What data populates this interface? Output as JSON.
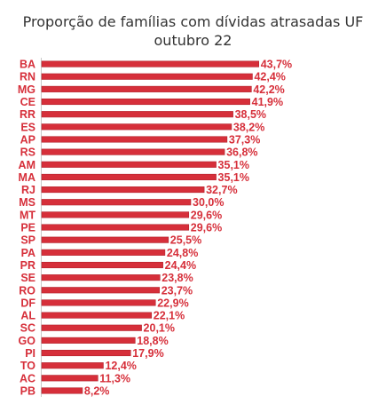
{
  "chart_data": {
    "type": "bar",
    "orientation": "horizontal",
    "title": "Proporção de famílias com dívidas atrasadas UF\noutubro  22",
    "categories": [
      "BA",
      "RN",
      "MG",
      "CE",
      "RR",
      "ES",
      "AP",
      "RS",
      "AM",
      "MA",
      "RJ",
      "MS",
      "MT",
      "PE",
      "SP",
      "PA",
      "PR",
      "SE",
      "RO",
      "DF",
      "AL",
      "SC",
      "GO",
      "PI",
      "TO",
      "AC",
      "PB"
    ],
    "values": [
      43.7,
      42.4,
      42.2,
      41.9,
      38.5,
      38.2,
      37.3,
      36.8,
      35.1,
      35.1,
      32.7,
      30.0,
      29.6,
      29.6,
      25.5,
      24.8,
      24.4,
      23.8,
      23.7,
      22.9,
      22.1,
      20.1,
      18.8,
      17.9,
      12.4,
      11.3,
      8.2
    ],
    "value_labels": [
      "43,7%",
      "42,4%",
      "42,2%",
      "41,9%",
      "38,5%",
      "38,2%",
      "37,3%",
      "36,8%",
      "35,1%",
      "35,1%",
      "32,7%",
      "30,0%",
      "29,6%",
      "29,6%",
      "25,5%",
      "24,8%",
      "24,4%",
      "23,8%",
      "23,7%",
      "22,9%",
      "22,1%",
      "20,1%",
      "18,8%",
      "17,9%",
      "12,4%",
      "11,3%",
      "8,2%"
    ],
    "xlim": [
      0,
      50
    ],
    "bar_color": "#d62f3a",
    "label_color": "#d62f3a",
    "grid": false,
    "legend": "none"
  }
}
